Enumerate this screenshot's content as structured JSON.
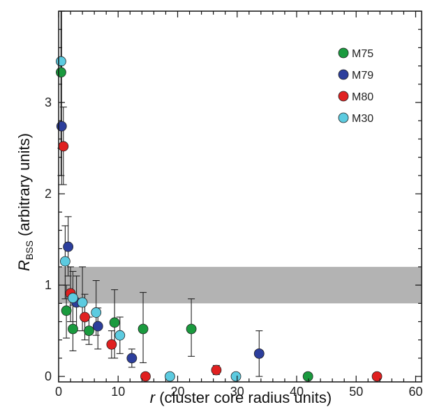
{
  "chart_data": {
    "type": "scatter",
    "xlabel_var": "r",
    "xlabel_rest": " (cluster core radius units)",
    "ylabel_var": "R",
    "ylabel_sub": "BSS",
    "ylabel_rest": " (arbitrary units)",
    "xlim": [
      0,
      61
    ],
    "ylim": [
      -0.06,
      4.0
    ],
    "xticks": [
      0,
      10,
      20,
      30,
      40,
      50,
      60
    ],
    "yticks": [
      0,
      1,
      2,
      3
    ],
    "band": {
      "y0": 0.8,
      "y1": 1.2,
      "color": "#b3b3b3"
    },
    "legend_position": "top-right",
    "series": [
      {
        "name": "M75",
        "color": "#1a9a3e",
        "points": [
          {
            "x": 0.4,
            "y": 3.33,
            "lo": 2.2,
            "hi": 4.0
          },
          {
            "x": 1.3,
            "y": 0.72,
            "lo": 0.42,
            "hi": 1.0
          },
          {
            "x": 2.4,
            "y": 0.52,
            "lo": 0.28,
            "hi": 0.78
          },
          {
            "x": 5.1,
            "y": 0.5,
            "lo": 0.35,
            "hi": 0.65
          },
          {
            "x": 9.4,
            "y": 0.59,
            "lo": 0.2,
            "hi": 0.95
          },
          {
            "x": 14.2,
            "y": 0.52,
            "lo": 0.15,
            "hi": 0.92
          },
          {
            "x": 22.3,
            "y": 0.52,
            "lo": 0.22,
            "hi": 0.85
          },
          {
            "x": 41.9,
            "y": 0.0,
            "lo": 0.0,
            "hi": 0.0
          }
        ]
      },
      {
        "name": "M79",
        "color": "#2c3e9c",
        "points": [
          {
            "x": 0.5,
            "y": 2.74,
            "lo": 2.1,
            "hi": 4.0
          },
          {
            "x": 1.6,
            "y": 1.42,
            "lo": 1.1,
            "hi": 1.75
          },
          {
            "x": 3.0,
            "y": 0.81,
            "lo": 0.5,
            "hi": 1.1
          },
          {
            "x": 6.6,
            "y": 0.55,
            "lo": 0.3,
            "hi": 0.75
          },
          {
            "x": 12.3,
            "y": 0.2,
            "lo": 0.1,
            "hi": 0.3
          },
          {
            "x": 33.7,
            "y": 0.25,
            "lo": 0.0,
            "hi": 0.5
          }
        ]
      },
      {
        "name": "M80",
        "color": "#e02020",
        "points": [
          {
            "x": 0.8,
            "y": 2.52,
            "lo": 2.1,
            "hi": 2.95
          },
          {
            "x": 2.0,
            "y": 0.91,
            "lo": 0.6,
            "hi": 1.2
          },
          {
            "x": 4.4,
            "y": 0.65,
            "lo": 0.4,
            "hi": 0.9
          },
          {
            "x": 8.9,
            "y": 0.35,
            "lo": 0.2,
            "hi": 0.5
          },
          {
            "x": 14.6,
            "y": 0.0,
            "lo": 0.0,
            "hi": 0.0
          },
          {
            "x": 26.5,
            "y": 0.07,
            "lo": 0.02,
            "hi": 0.12
          },
          {
            "x": 53.5,
            "y": 0.0,
            "lo": 0.0,
            "hi": 0.0
          }
        ]
      },
      {
        "name": "M30",
        "color": "#5ccbe0",
        "points": [
          {
            "x": 0.4,
            "y": 3.45,
            "lo": 2.5,
            "hi": 4.0
          },
          {
            "x": 1.1,
            "y": 1.26,
            "lo": 0.85,
            "hi": 1.65
          },
          {
            "x": 2.4,
            "y": 0.86,
            "lo": 0.6,
            "hi": 1.15
          },
          {
            "x": 4.0,
            "y": 0.81,
            "lo": 0.5,
            "hi": 1.2
          },
          {
            "x": 6.3,
            "y": 0.7,
            "lo": 0.45,
            "hi": 1.05
          },
          {
            "x": 10.3,
            "y": 0.45,
            "lo": 0.25,
            "hi": 0.65
          },
          {
            "x": 18.7,
            "y": 0.0,
            "lo": 0.0,
            "hi": 0.0
          },
          {
            "x": 29.8,
            "y": 0.0,
            "lo": 0.0,
            "hi": 0.0
          }
        ]
      }
    ]
  }
}
